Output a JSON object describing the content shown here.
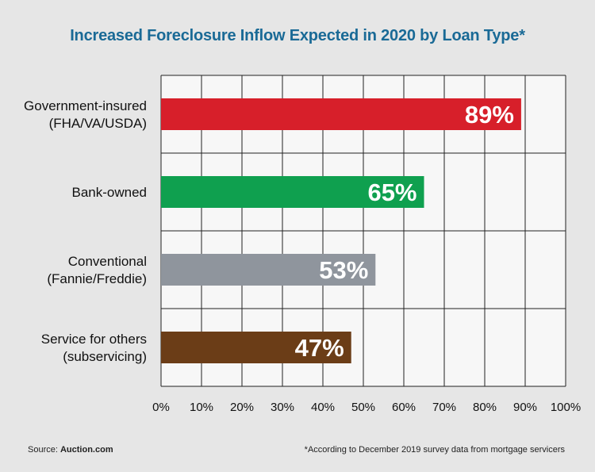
{
  "title": "Increased Foreclosure Inflow Expected in 2020 by Loan Type*",
  "footer": {
    "source_label": "Source:",
    "source_value": "Auction.com",
    "note": "*According to December 2019 survey data from mortgage servicers"
  },
  "chart_data": {
    "type": "bar",
    "orientation": "horizontal",
    "categories": [
      [
        "Government-insured",
        "(FHA/VA/USDA)"
      ],
      [
        "Bank-owned"
      ],
      [
        "Conventional",
        "(Fannie/Freddie)"
      ],
      [
        "Service for others",
        "(subservicing)"
      ]
    ],
    "values": [
      89,
      65,
      53,
      47
    ],
    "value_labels": [
      "89%",
      "65%",
      "53%",
      "47%"
    ],
    "bar_colors": [
      "#d71f2a",
      "#0fa04f",
      "#8f959d",
      "#6b3d17"
    ],
    "xlim": [
      0,
      100
    ],
    "xticks": [
      0,
      10,
      20,
      30,
      40,
      50,
      60,
      70,
      80,
      90,
      100
    ],
    "xtick_labels": [
      "0%",
      "10%",
      "20%",
      "30%",
      "40%",
      "50%",
      "60%",
      "70%",
      "80%",
      "90%",
      "100%"
    ],
    "grid": true,
    "colors": {
      "plot_bg": "#f7f7f7",
      "grid": "#222222",
      "value_label": "#ffffff"
    }
  }
}
